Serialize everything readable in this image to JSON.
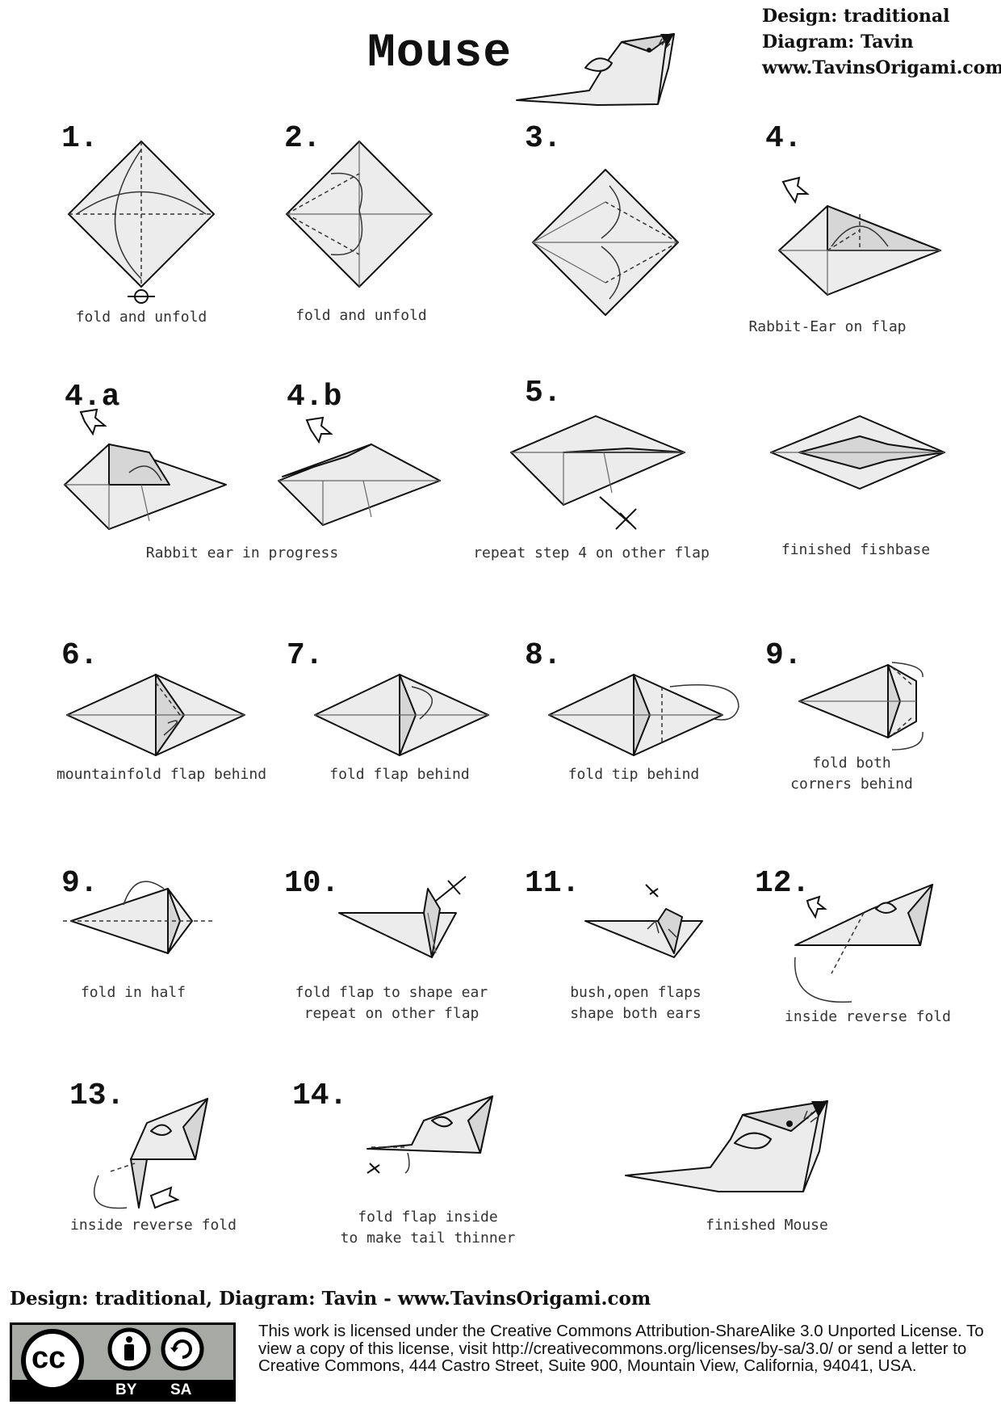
{
  "header": {
    "title": "Mouse",
    "design": "Design: traditional",
    "diagram": "Diagram: Tavin",
    "website": "www.TavinsOrigami.com"
  },
  "steps": [
    {
      "number": "1.",
      "caption": "fold and unfold"
    },
    {
      "number": "2.",
      "caption": "fold and unfold"
    },
    {
      "number": "3.",
      "caption": ""
    },
    {
      "number": "4.",
      "caption": "Rabbit-Ear on flap"
    },
    {
      "number": "4.a",
      "caption": ""
    },
    {
      "number": "4.b",
      "caption": ""
    },
    {
      "number": "5.",
      "caption": "repeat step 4 on other flap"
    },
    {
      "number": "",
      "caption": "finished fishbase"
    },
    {
      "number": "6.",
      "caption": "mountainfold flap behind"
    },
    {
      "number": "7.",
      "caption": "fold flap behind"
    },
    {
      "number": "8.",
      "caption": "fold tip behind"
    },
    {
      "number": "9.",
      "caption": "fold both\ncorners behind"
    },
    {
      "number": "9.",
      "caption": "fold in half"
    },
    {
      "number": "10.",
      "caption": "fold flap to shape ear\nrepeat on other flap"
    },
    {
      "number": "11.",
      "caption": "bush,open flaps\nshape both ears"
    },
    {
      "number": "12.",
      "caption": "inside reverse fold"
    },
    {
      "number": "13.",
      "caption": "inside reverse fold"
    },
    {
      "number": "14.",
      "caption": "fold flap inside\nto make tail thinner"
    },
    {
      "number": "",
      "caption": "finished Mouse"
    }
  ],
  "shared_captions": {
    "rabbit_ear_progress": "Rabbit ear in progress"
  },
  "footer": {
    "credit_line": "Design: traditional, Diagram: Tavin - www.TavinsOrigami.com",
    "license_text": "This work is licensed under the Creative Commons Attribution-ShareAlike 3.0 Unported License. To view a copy of this license, visit http://creativecommons.org/licenses/by-sa/3.0/ or send a letter to Creative Commons, 444 Castro Street, Suite 900, Mountain View, California, 94041, USA.",
    "badge": {
      "cc": "cc",
      "by": "BY",
      "sa": "SA"
    }
  },
  "colors": {
    "paper": "#ececec",
    "badge_gray": "#a6a9a4"
  },
  "icons": [
    "mouse-model-icon",
    "cc-icon",
    "attribution-icon",
    "share-alike-icon"
  ]
}
